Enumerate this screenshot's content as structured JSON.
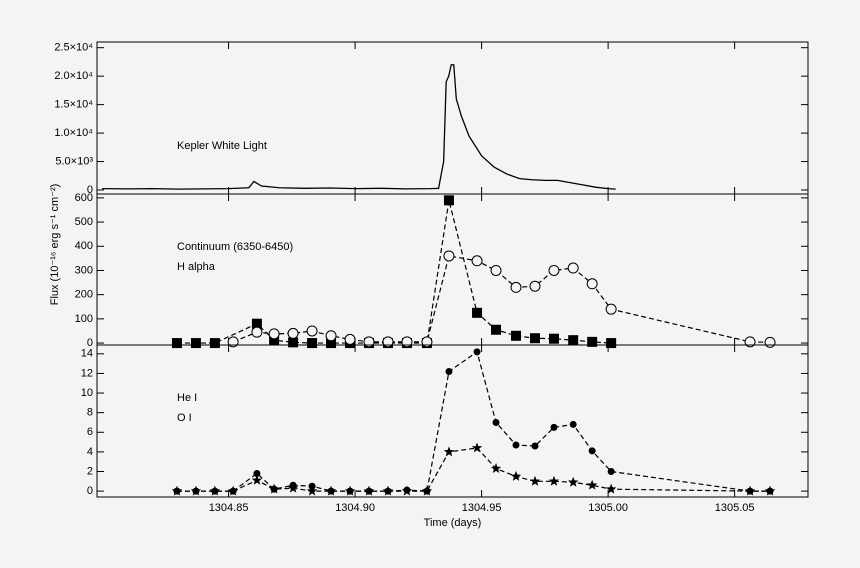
{
  "chart_data": [
    {
      "type": "line",
      "x": [
        1304.8,
        1304.81,
        1304.82,
        1304.83,
        1304.84,
        1304.85,
        1304.858,
        1304.86,
        1304.863,
        1304.87,
        1304.88,
        1304.89,
        1304.9,
        1304.91,
        1304.92,
        1304.93,
        1304.933,
        1304.935,
        1304.936,
        1304.937,
        1304.938,
        1304.939,
        1304.94,
        1304.942,
        1304.945,
        1304.95,
        1304.955,
        1304.96,
        1304.965,
        1304.97,
        1304.975,
        1304.98,
        1304.985,
        1304.99,
        1304.995,
        1305.0,
        1305.003
      ],
      "series": [
        {
          "name": "Kepler White Light",
          "color": "#000000",
          "line": "solid",
          "marker": "none",
          "values": [
            250,
            200,
            250,
            150,
            200,
            250,
            400,
            1500,
            700,
            400,
            300,
            350,
            250,
            300,
            200,
            250,
            300,
            5000,
            19000,
            20000,
            22000,
            22000,
            16000,
            13000,
            9500,
            6000,
            4000,
            2800,
            2000,
            1800,
            1700,
            1700,
            1300,
            900,
            500,
            250,
            150
          ]
        }
      ],
      "xlim": [
        1304.798,
        1305.079
      ],
      "ylim": [
        -700,
        26000
      ],
      "yticks": [
        0,
        {
          "value": 5000,
          "label": "5.0×10³"
        },
        {
          "value": 10000,
          "label": "1.0×10⁴"
        },
        {
          "value": 15000,
          "label": "1.5×10⁴"
        },
        {
          "value": 20000,
          "label": "2.0×10⁴"
        },
        {
          "value": 25000,
          "label": "2.5×10⁴"
        }
      ]
    },
    {
      "type": "line",
      "x": [
        1304.8296,
        1304.8371,
        1304.8446,
        1304.8518,
        1304.8612,
        1304.868,
        1304.8755,
        1304.883,
        1304.8905,
        1304.898,
        1304.9055,
        1304.913,
        1304.9205,
        1304.9284,
        1304.9371,
        1304.9482,
        1304.9557,
        1304.9636,
        1304.9711,
        1304.9786,
        1304.9862,
        1304.9937,
        1305.0012,
        1305.0561,
        1305.064
      ],
      "ylabel": "Flux (10⁻¹⁶ erg s⁻¹ cm⁻²)",
      "series": [
        {
          "name": "Continuum (6350-6450)",
          "color": "#000000",
          "line": "dashed",
          "marker": "square",
          "values": [
            0,
            0,
            0,
            null,
            80,
            12,
            3,
            0,
            0,
            0,
            0,
            0,
            0,
            0,
            590,
            125,
            55,
            30,
            20,
            18,
            12,
            5,
            0,
            null,
            null
          ]
        },
        {
          "name": "H alpha",
          "color": "#000000",
          "line": "dashed",
          "marker": "circle-open",
          "values": [
            null,
            null,
            null,
            5,
            45,
            38,
            40,
            50,
            30,
            15,
            5,
            5,
            5,
            5,
            360,
            340,
            300,
            230,
            235,
            300,
            310,
            245,
            140,
            5,
            3
          ]
        }
      ],
      "xlim": [
        1304.798,
        1305.079
      ],
      "ylim": [
        -8,
        616
      ],
      "yticks": [
        0,
        100,
        200,
        300,
        400,
        500,
        600
      ]
    },
    {
      "type": "line",
      "x": [
        1304.8296,
        1304.8371,
        1304.8446,
        1304.8518,
        1304.8612,
        1304.868,
        1304.8755,
        1304.883,
        1304.8905,
        1304.898,
        1304.9055,
        1304.913,
        1304.9205,
        1304.9284,
        1304.9371,
        1304.9482,
        1304.9557,
        1304.9636,
        1304.9711,
        1304.9786,
        1304.9862,
        1304.9937,
        1305.0012,
        1305.0561,
        1305.064
      ],
      "xlabel": "Time (days)",
      "series": [
        {
          "name": "He I",
          "color": "#000000",
          "line": "dashed",
          "marker": "circle",
          "values": [
            0,
            0,
            0,
            0,
            1.8,
            0.2,
            0.6,
            0.5,
            0,
            0,
            0,
            0,
            0.1,
            0,
            12.2,
            14.2,
            7.0,
            4.7,
            4.6,
            6.5,
            6.8,
            4.1,
            2.0,
            0,
            0
          ]
        },
        {
          "name": "O I",
          "color": "#000000",
          "line": "dashed",
          "marker": "star",
          "values": [
            0,
            0,
            0,
            0,
            1.1,
            0.2,
            0.3,
            0,
            0,
            0,
            0,
            0,
            0,
            0,
            4.0,
            4.4,
            2.3,
            1.5,
            1.0,
            1.0,
            0.9,
            0.6,
            0.2,
            0,
            0
          ]
        }
      ],
      "xlim": [
        1304.798,
        1305.079
      ],
      "ylim": [
        -0.6,
        14.9
      ],
      "yticks": [
        0,
        2,
        4,
        6,
        8,
        10,
        12,
        14
      ],
      "xticks": [
        1304.85,
        {
          "value": 1304.9,
          "label": "1304.90"
        },
        1304.95,
        {
          "value": 1305,
          "label": "1305.00"
        },
        1305.05
      ]
    }
  ]
}
